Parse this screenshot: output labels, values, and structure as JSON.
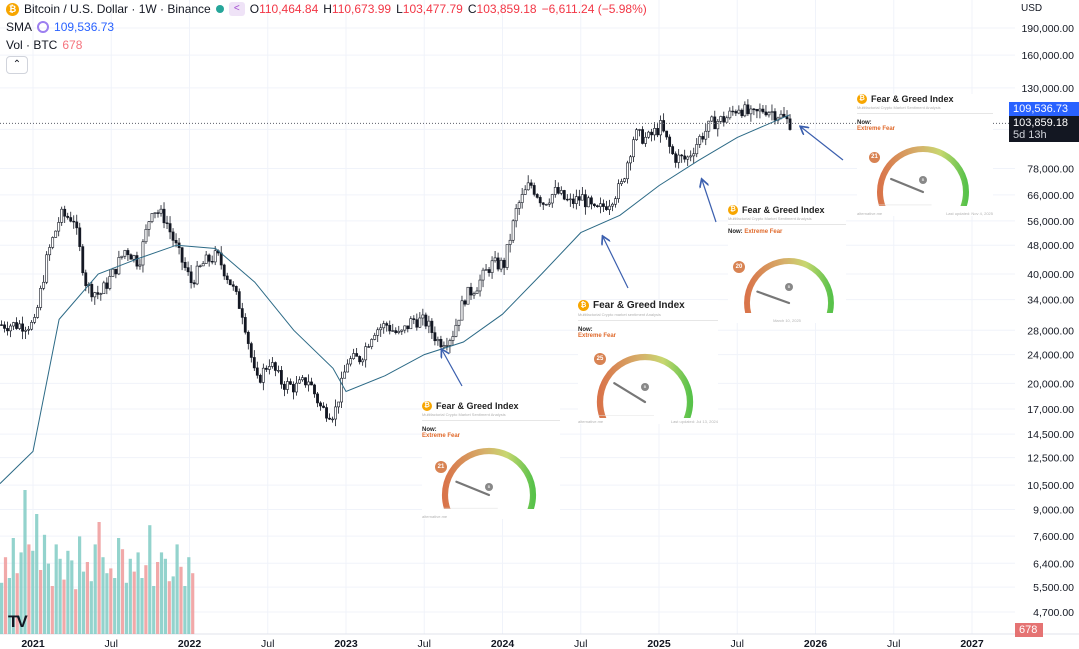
{
  "header": {
    "symbol": "Bitcoin / U.S. Dollar · 1W · Binance",
    "open_label": "O",
    "open": "110,464.84",
    "high_label": "H",
    "high": "110,673.99",
    "low_label": "L",
    "low": "103,477.79",
    "close_label": "C",
    "close": "103,859.18",
    "change": "−6,611.24 (−5.98%)",
    "sma_label": "SMA",
    "sma_value": "109,536.73",
    "vol_label": "Vol · BTC",
    "vol_value": "678",
    "collapse_glyph": "⌃",
    "coin_glyph": "₿"
  },
  "currency": "USD",
  "badges": {
    "sma": "109,536.73",
    "price": "103,859.18",
    "countdown": "5d 13h",
    "volume": "678"
  },
  "chart_data": {
    "type": "candlestick",
    "title": "Bitcoin / U.S. Dollar · 1W · Binance",
    "y_scale": "log",
    "ylim": [
      4300,
      210000
    ],
    "y_ticks": [
      190000,
      160000,
      130000,
      100000,
      78000,
      66000,
      56000,
      48000,
      40000,
      34000,
      28000,
      24000,
      20000,
      17000,
      14500,
      12500,
      10500,
      9000,
      7600,
      6400,
      5500,
      4700
    ],
    "y_tick_labels": [
      "190,000.00",
      "160,000.00",
      "130,000.00",
      "",
      "78,000.00",
      "66,000.00",
      "56,000.00",
      "48,000.00",
      "40,000.00",
      "34,000.00",
      "28,000.00",
      "24,000.00",
      "20,000.00",
      "17,000.00",
      "14,500.00",
      "12,500.00",
      "10,500.00",
      "9,000.00",
      "7,600.00",
      "6,400.00",
      "5,500.00",
      "4,700.00"
    ],
    "x_ticks": [
      "2021",
      "Jul",
      "2022",
      "Jul",
      "2023",
      "Jul",
      "2024",
      "Jul",
      "2025",
      "Jul",
      "2026",
      "Jul",
      "2027"
    ],
    "price_path": [
      [
        "2021-01",
        29000
      ],
      [
        "2021-02",
        45000
      ],
      [
        "2021-03",
        58000
      ],
      [
        "2021-04",
        57000
      ],
      [
        "2021-05",
        37000
      ],
      [
        "2021-06",
        35000
      ],
      [
        "2021-07",
        40000
      ],
      [
        "2021-08",
        47000
      ],
      [
        "2021-09",
        43000
      ],
      [
        "2021-10",
        61000
      ],
      [
        "2021-11",
        57000
      ],
      [
        "2021-12",
        46000
      ],
      [
        "2022-01",
        38000
      ],
      [
        "2022-02",
        43000
      ],
      [
        "2022-03",
        45000
      ],
      [
        "2022-04",
        38000
      ],
      [
        "2022-05",
        31000
      ],
      [
        "2022-06",
        20000
      ],
      [
        "2022-07",
        23000
      ],
      [
        "2022-08",
        20000
      ],
      [
        "2022-09",
        19500
      ],
      [
        "2022-10",
        20500
      ],
      [
        "2022-11",
        17000
      ],
      [
        "2022-12",
        16500
      ],
      [
        "2023-01",
        23000
      ],
      [
        "2023-02",
        23500
      ],
      [
        "2023-03",
        28000
      ],
      [
        "2023-04",
        29000
      ],
      [
        "2023-05",
        27000
      ],
      [
        "2023-06",
        30000
      ],
      [
        "2023-07",
        29500
      ],
      [
        "2023-08",
        26000
      ],
      [
        "2023-09",
        27000
      ],
      [
        "2023-10",
        34500
      ],
      [
        "2023-11",
        37500
      ],
      [
        "2023-12",
        42500
      ],
      [
        "2024-01",
        42500
      ],
      [
        "2024-02",
        61000
      ],
      [
        "2024-03",
        71000
      ],
      [
        "2024-04",
        63000
      ],
      [
        "2024-05",
        67500
      ],
      [
        "2024-06",
        62500
      ],
      [
        "2024-07",
        65000
      ],
      [
        "2024-08",
        59000
      ],
      [
        "2024-09",
        63000
      ],
      [
        "2024-10",
        70000
      ],
      [
        "2024-11",
        97000
      ],
      [
        "2024-12",
        94000
      ],
      [
        "2025-01",
        102000
      ],
      [
        "2025-02",
        84000
      ],
      [
        "2025-03",
        82500
      ],
      [
        "2025-04",
        94500
      ],
      [
        "2025-05",
        104500
      ],
      [
        "2025-06",
        107000
      ],
      [
        "2025-07",
        115500
      ],
      [
        "2025-08",
        108500
      ],
      [
        "2025-09",
        114000
      ],
      [
        "2025-10",
        110000
      ],
      [
        "2025-11",
        103859
      ]
    ],
    "sma_path": [
      [
        "2021-01",
        13000
      ],
      [
        "2021-03",
        30000
      ],
      [
        "2021-06",
        40000
      ],
      [
        "2021-09",
        44000
      ],
      [
        "2021-12",
        48000
      ],
      [
        "2022-03",
        47000
      ],
      [
        "2022-06",
        38000
      ],
      [
        "2022-09",
        28000
      ],
      [
        "2022-12",
        22000
      ],
      [
        "2023-01",
        19000
      ],
      [
        "2023-04",
        21000
      ],
      [
        "2023-07",
        24000
      ],
      [
        "2023-10",
        26000
      ],
      [
        "2024-01",
        31000
      ],
      [
        "2024-04",
        40000
      ],
      [
        "2024-07",
        52000
      ],
      [
        "2024-10",
        58000
      ],
      [
        "2025-01",
        70000
      ],
      [
        "2025-04",
        82000
      ],
      [
        "2025-07",
        95000
      ],
      [
        "2025-11",
        109536
      ]
    ],
    "volume_bars": [
      320,
      480,
      350,
      600,
      380,
      510,
      900,
      560,
      520,
      750,
      400,
      620,
      440,
      300,
      560,
      470,
      340,
      520,
      460,
      280,
      610,
      390,
      450,
      330,
      560,
      700,
      480,
      380,
      410,
      350,
      600,
      530,
      320,
      470,
      390,
      510,
      350,
      430,
      680,
      300,
      450,
      510,
      470,
      330,
      360,
      560,
      420,
      300,
      480,
      380
    ],
    "volume_last": 678,
    "volume_max": 1000,
    "sentiment_overlays": [
      {
        "score": 21,
        "classification": "Extreme Fear",
        "at": "2023-09"
      },
      {
        "score": 25,
        "classification": "Extreme Fear",
        "at": "2024-09"
      },
      {
        "score": 20,
        "classification": "Extreme Fear",
        "at": "2025-04"
      },
      {
        "score": 21,
        "classification": "Extreme Fear",
        "at": "2025-11"
      }
    ],
    "colors": {
      "up": "#26a69a",
      "down": "#f23645",
      "sma": "#2c6a86",
      "price_line": "#5d606b"
    }
  },
  "fear_greed_cards": [
    {
      "title": "Fear & Greed Index",
      "subtitle": "Multifactorial Crypto Market Sentiment Analysis",
      "now_label": "Now:",
      "classification": "Extreme Fear",
      "score": "21",
      "footer_left": "alternative.me",
      "footer_right": ""
    },
    {
      "title": "Fear & Greed Index",
      "subtitle": "Multifactorial Crypto market sentiment Analysis",
      "now_label": "Now:",
      "classification": "Extreme Fear",
      "score": "25",
      "footer_left": "alternative.me",
      "footer_right": "Last updated: Jul 13, 2024"
    },
    {
      "title": "Fear & Greed Index",
      "subtitle": "Multifactorial Crypto Market Sentiment Analysis",
      "now_label": "Now:",
      "classification": "Extreme Fear",
      "score": "20",
      "footer_left": "",
      "footer_right": "March 10, 2025"
    },
    {
      "title": "Fear & Greed Index",
      "subtitle": "Multifactorial Crypto Market Sentiment Analysis",
      "now_label": "Now:",
      "classification": "Extreme Fear",
      "score": "21",
      "footer_left": "alternative.me",
      "footer_right": "Last updated: Nov 4, 2025"
    }
  ]
}
